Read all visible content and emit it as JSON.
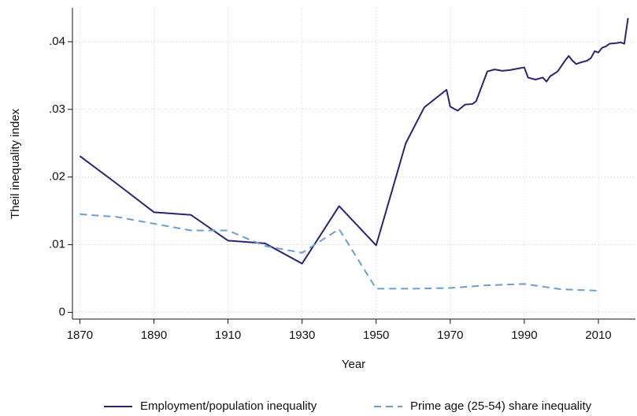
{
  "chart_data": {
    "type": "line",
    "xlabel": "Year",
    "ylabel": "Theil inequality index",
    "xlim": [
      1868,
      2020
    ],
    "ylim": [
      -0.001,
      0.045
    ],
    "xticks": [
      1870,
      1890,
      1910,
      1930,
      1950,
      1970,
      1990,
      2010
    ],
    "yticks": [
      0,
      {
        "value": 0.01,
        "label": ".01"
      },
      {
        "value": 0.02,
        "label": ".02"
      },
      {
        "value": 0.03,
        "label": ".03"
      },
      {
        "value": 0.04,
        "label": ".04"
      }
    ],
    "grid": true,
    "legend": "bottom",
    "series": [
      {
        "name": "Employment/population inequality",
        "color": "#2a2473",
        "dash": false,
        "x": [
          1870,
          1880,
          1890,
          1900,
          1910,
          1920,
          1930,
          1940,
          1950,
          1958,
          1963,
          1969,
          1970,
          1972,
          1974,
          1976,
          1977,
          1980,
          1982,
          1984,
          1986,
          1988,
          1990,
          1991,
          1993,
          1995,
          1996,
          1997,
          1999,
          2001,
          2002,
          2003,
          2004,
          2005,
          2007,
          2008,
          2009,
          2010,
          2011,
          2012,
          2013,
          2015,
          2016,
          2017,
          2018
        ],
        "values": [
          0.0231,
          0.019,
          0.0148,
          0.0144,
          0.0106,
          0.0102,
          0.0072,
          0.0157,
          0.0099,
          0.025,
          0.0303,
          0.0329,
          0.0304,
          0.0298,
          0.0307,
          0.0308,
          0.0312,
          0.0356,
          0.0359,
          0.0357,
          0.0358,
          0.036,
          0.0362,
          0.0347,
          0.0344,
          0.0347,
          0.0341,
          0.0349,
          0.0356,
          0.0372,
          0.0379,
          0.0372,
          0.0367,
          0.0369,
          0.0372,
          0.0376,
          0.0386,
          0.0384,
          0.0391,
          0.0393,
          0.0397,
          0.0398,
          0.0399,
          0.0397,
          0.0435
        ]
      },
      {
        "name": "Prime age (25-54) share inequality",
        "color": "#6a9fd4",
        "dash": true,
        "x": [
          1870,
          1880,
          1890,
          1900,
          1910,
          1920,
          1930,
          1940,
          1950,
          1960,
          1970,
          1980,
          1990,
          2000,
          2010
        ],
        "values": [
          0.0145,
          0.0141,
          0.0131,
          0.0121,
          0.0121,
          0.0098,
          0.0088,
          0.0123,
          0.0035,
          0.0035,
          0.0036,
          0.004,
          0.0042,
          0.0034,
          0.0032
        ]
      }
    ]
  }
}
